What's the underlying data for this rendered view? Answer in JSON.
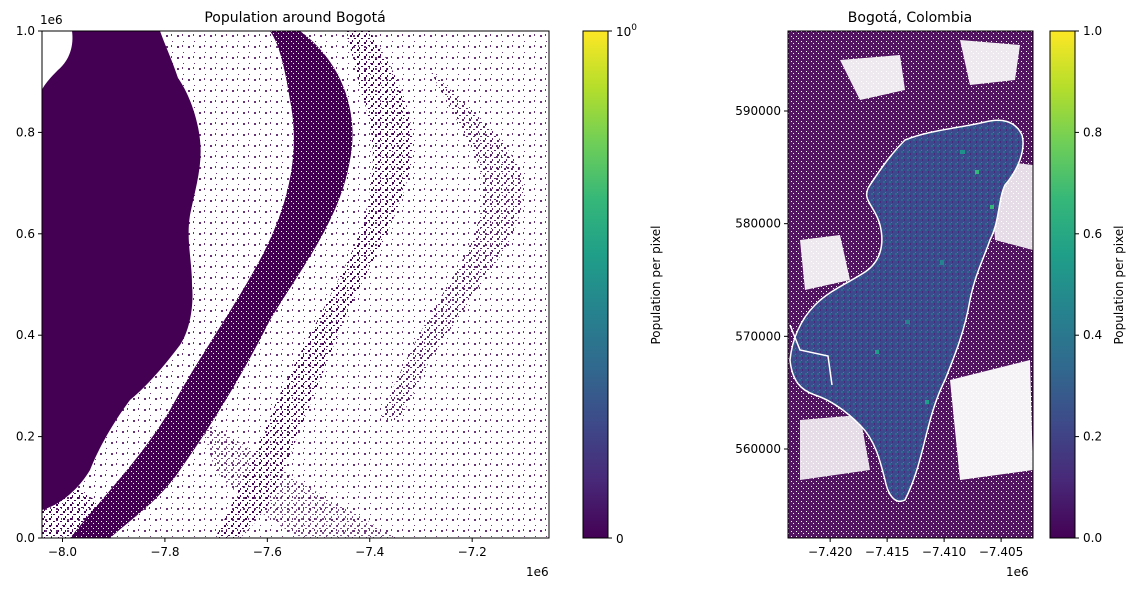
{
  "chart_data": [
    {
      "type": "heatmap",
      "title": "Population around Bogotá",
      "x_axis": {
        "ticks": [
          "−8.0",
          "−7.8",
          "−7.6",
          "−7.4",
          "−7.2"
        ],
        "tick_values": [
          -8.0,
          -7.8,
          -7.6,
          -7.4,
          -7.2
        ],
        "offset_label": "1e6",
        "range": [
          -8.04,
          -7.05
        ]
      },
      "y_axis": {
        "ticks": [
          "0.0",
          "0.2",
          "0.4",
          "0.6",
          "0.8",
          "1.0"
        ],
        "tick_values": [
          0.0,
          0.2,
          0.4,
          0.6,
          0.8,
          1.0
        ],
        "offset_label": "1e6",
        "range": [
          0.0,
          1.0
        ]
      },
      "colorbar": {
        "label": "Population per pixel",
        "scale": "symlog",
        "ticks": [
          "0",
          "10^0"
        ],
        "tick_values": [
          0,
          1
        ],
        "colormap": "viridis"
      },
      "no_data_color": "#ffffff"
    },
    {
      "type": "heatmap",
      "title": "Bogotá, Colombia",
      "x_axis": {
        "ticks": [
          "−7.420",
          "−7.415",
          "−7.410",
          "−7.405"
        ],
        "tick_values": [
          -7.42,
          -7.415,
          -7.41,
          -7.405
        ],
        "offset_label": "1e6",
        "range": [
          -7.4237,
          -7.4022
        ]
      },
      "y_axis": {
        "ticks": [
          "560000",
          "570000",
          "580000",
          "590000"
        ],
        "tick_values": [
          560000,
          570000,
          580000,
          590000
        ],
        "range": [
          552100,
          597100
        ]
      },
      "colorbar": {
        "label": "Population per pixel",
        "scale": "linear",
        "ticks": [
          "0.0",
          "0.2",
          "0.4",
          "0.6",
          "0.8",
          "1.0"
        ],
        "tick_values": [
          0.0,
          0.2,
          0.4,
          0.6,
          0.8,
          1.0
        ],
        "colormap": "viridis"
      },
      "no_data_color": "#ffffff"
    }
  ],
  "colors": {
    "viridis_stops": [
      "#440154",
      "#482878",
      "#3e4989",
      "#31688e",
      "#26828e",
      "#1f9e89",
      "#35b779",
      "#6ece58",
      "#b5de2b",
      "#fde725"
    ],
    "low_population": "#440154",
    "urban_mid": "#3a4a8c",
    "background": "#ffffff"
  }
}
